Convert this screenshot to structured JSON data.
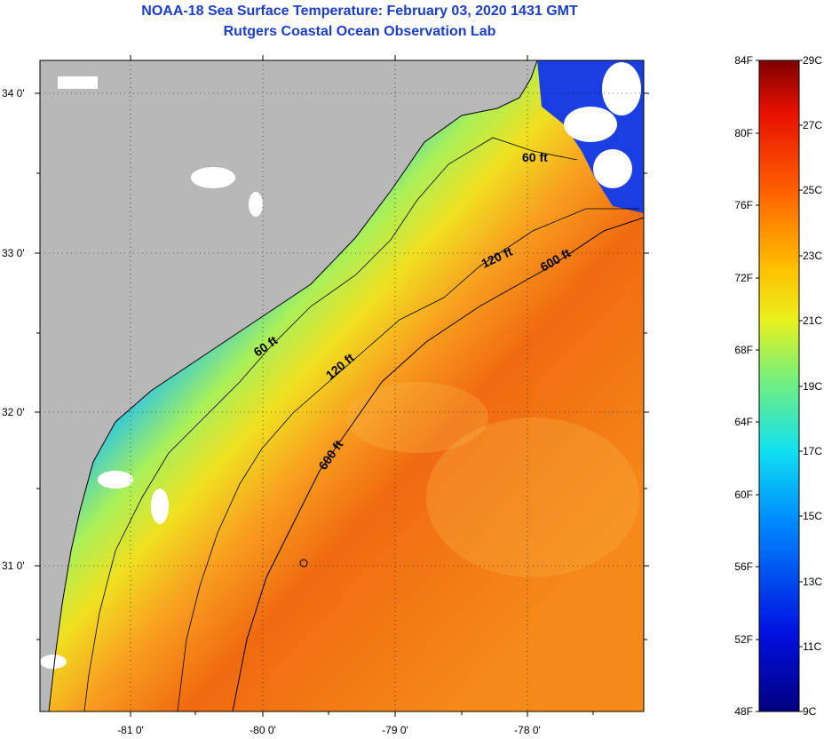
{
  "title_line1": "NOAA-18 Sea Surface Temperature:  February 03, 2020 1431 GMT",
  "title_line2": "Rutgers Coastal Ocean Observation Lab",
  "lat_labels": [
    "34 0'",
    "33 0'",
    "32 0'",
    "31 0'"
  ],
  "lon_labels": [
    "-81 0'",
    "-80 0'",
    "-79 0'",
    "-78 0'"
  ],
  "contour_labels": [
    "60 ft",
    "120 ft",
    "600 ft",
    "60 ft",
    "120 ft",
    "600 ft"
  ],
  "colorbar": {
    "fahrenheit": [
      "84F",
      "80F",
      "76F",
      "72F",
      "68F",
      "64F",
      "60F",
      "56F",
      "52F",
      "48F"
    ],
    "celsius": [
      "29C",
      "27C",
      "25C",
      "23C",
      "21C",
      "19C",
      "17C",
      "15C",
      "13C",
      "11C",
      "9C"
    ]
  },
  "colors": {
    "land": "#b8b8b8",
    "title": "#1a3cd0"
  }
}
